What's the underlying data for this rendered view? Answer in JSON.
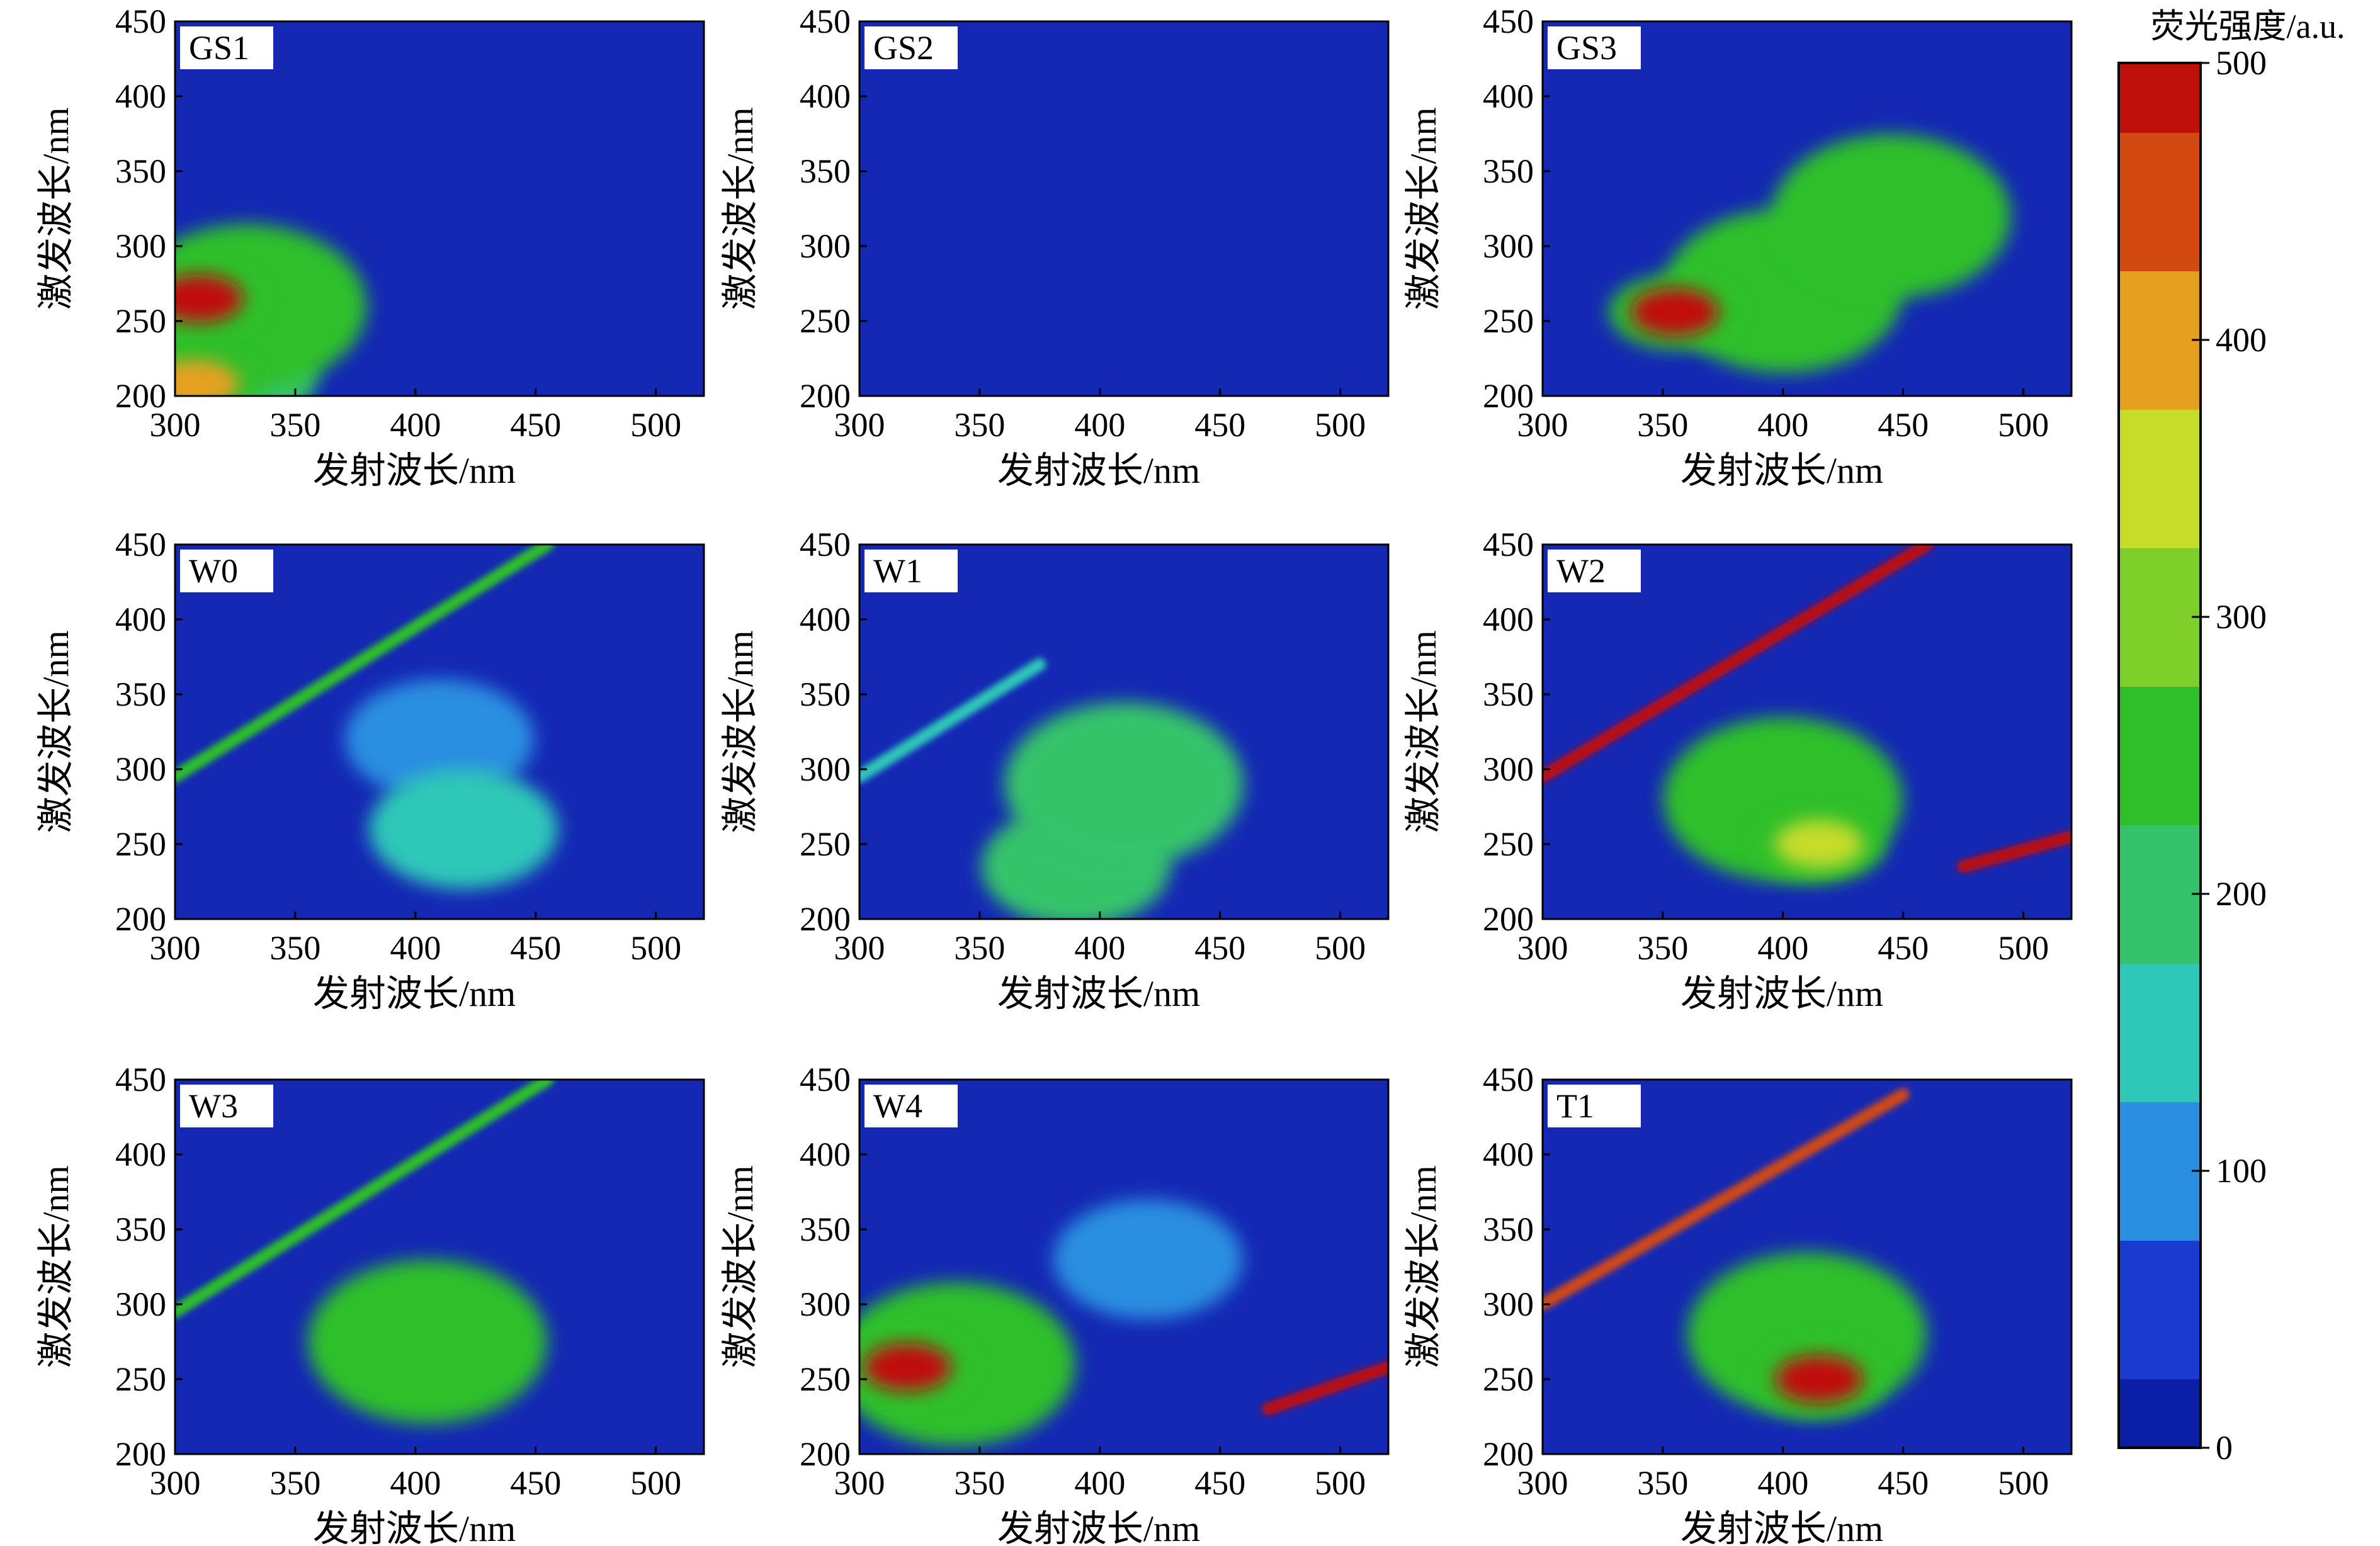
{
  "chart_data": {
    "type": "heatmap",
    "figure_kind": "excitation-emission matrix contour maps",
    "xlabel": "发射波长/nm",
    "ylabel": "激发波长/nm",
    "xlim": [
      300,
      520
    ],
    "ylim": [
      200,
      450
    ],
    "x_ticks": [
      "300",
      "350",
      "400",
      "450",
      "500"
    ],
    "y_ticks": [
      "200",
      "250",
      "300",
      "350",
      "400",
      "450"
    ],
    "colorbar": {
      "label": "荧光强度/a.u.",
      "range": [
        0,
        500
      ],
      "ticks": [
        "0",
        "100",
        "200",
        "300",
        "400",
        "500"
      ],
      "colormap": [
        "#0a1fa6",
        "#1a3ad0",
        "#2a8fe0",
        "#2fc7b8",
        "#34c36a",
        "#2fbf2a",
        "#7fcf2a",
        "#c6dc2a",
        "#e6a020",
        "#d24a12",
        "#c0100c"
      ]
    },
    "background_color": "#1428b4",
    "panels": [
      {
        "label": "GS1",
        "features": [
          {
            "kind": "peak",
            "ex": 265,
            "em": 310,
            "intensity": 500
          },
          {
            "kind": "region",
            "ex": 260,
            "em": 330,
            "intensity": 230
          },
          {
            "kind": "peak",
            "ex": 208,
            "em": 308,
            "intensity": 420
          },
          {
            "kind": "region",
            "ex": 215,
            "em": 320,
            "intensity": 180
          }
        ]
      },
      {
        "label": "GS2",
        "features": []
      },
      {
        "label": "GS3",
        "features": [
          {
            "kind": "region",
            "ex": 320,
            "em": 445,
            "intensity": 240
          },
          {
            "kind": "region",
            "ex": 270,
            "em": 400,
            "intensity": 230
          },
          {
            "kind": "peak",
            "ex": 256,
            "em": 355,
            "intensity": 500
          }
        ]
      },
      {
        "label": "W0",
        "features": [
          {
            "kind": "scatter_line",
            "ex_range": [
              295,
              450
            ],
            "em_range": [
              300,
              455
            ],
            "intensity": 230
          },
          {
            "kind": "region",
            "ex": 260,
            "em": 420,
            "intensity": 150
          },
          {
            "kind": "region",
            "ex": 320,
            "em": 410,
            "intensity": 100
          }
        ]
      },
      {
        "label": "W1",
        "features": [
          {
            "kind": "scatter_line",
            "ex_range": [
              295,
              370
            ],
            "em_range": [
              300,
              375
            ],
            "intensity": 160
          },
          {
            "kind": "region",
            "ex": 290,
            "em": 410,
            "intensity": 210
          },
          {
            "kind": "region",
            "ex": 235,
            "em": 390,
            "intensity": 200
          }
        ]
      },
      {
        "label": "W2",
        "features": [
          {
            "kind": "scatter_line",
            "ex_range": [
              295,
              450
            ],
            "em_range": [
              300,
              460
            ],
            "intensity": 500
          },
          {
            "kind": "region",
            "ex": 280,
            "em": 400,
            "intensity": 240
          },
          {
            "kind": "peak",
            "ex": 250,
            "em": 415,
            "intensity": 360
          },
          {
            "kind": "scatter_line",
            "ex_range": [
              235,
              255
            ],
            "em_range": [
              475,
              520
            ],
            "intensity": 500
          }
        ]
      },
      {
        "label": "W3",
        "features": [
          {
            "kind": "scatter_line",
            "ex_range": [
              295,
              450
            ],
            "em_range": [
              300,
              455
            ],
            "intensity": 250
          },
          {
            "kind": "region",
            "ex": 275,
            "em": 405,
            "intensity": 230
          }
        ]
      },
      {
        "label": "W4",
        "features": [
          {
            "kind": "peak",
            "ex": 258,
            "em": 320,
            "intensity": 500
          },
          {
            "kind": "region",
            "ex": 260,
            "em": 340,
            "intensity": 230
          },
          {
            "kind": "region",
            "ex": 330,
            "em": 420,
            "intensity": 80
          },
          {
            "kind": "scatter_line",
            "ex_range": [
              230,
              258
            ],
            "em_range": [
              470,
              520
            ],
            "intensity": 500
          }
        ]
      },
      {
        "label": "T1",
        "features": [
          {
            "kind": "scatter_line",
            "ex_range": [
              300,
              440
            ],
            "em_range": [
              300,
              450
            ],
            "intensity": 450
          },
          {
            "kind": "region",
            "ex": 280,
            "em": 410,
            "intensity": 250
          },
          {
            "kind": "peak",
            "ex": 250,
            "em": 415,
            "intensity": 500
          }
        ]
      }
    ]
  }
}
